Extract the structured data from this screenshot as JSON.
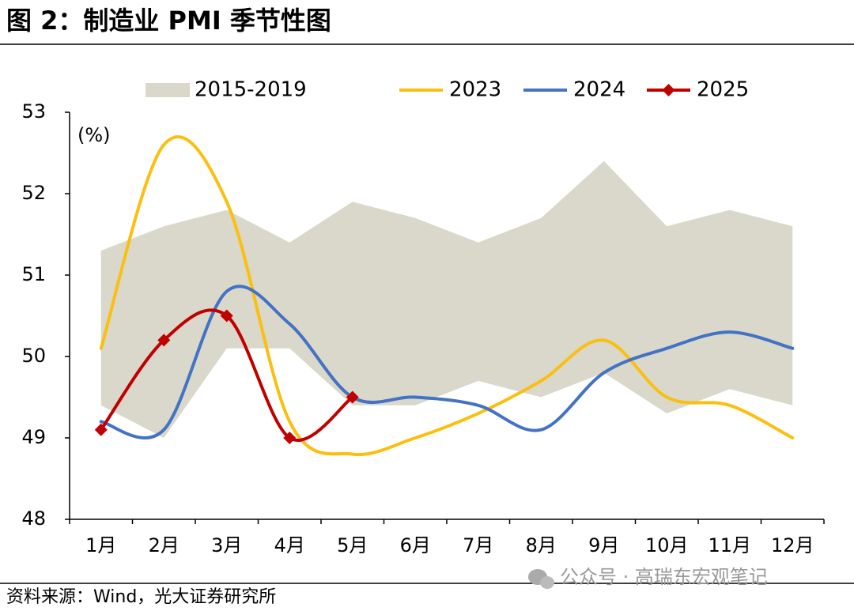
{
  "title": "图 2：制造业 PMI 季节性图",
  "source": "资料来源：Wind，光大证券研究所",
  "watermark": "公众号 · 高瑞东宏观笔记",
  "chart_data": {
    "type": "line",
    "y_label": "(%)",
    "categories": [
      "1月",
      "2月",
      "3月",
      "4月",
      "5月",
      "6月",
      "7月",
      "8月",
      "9月",
      "10月",
      "11月",
      "12月"
    ],
    "ylim": [
      48,
      53
    ],
    "yticks": [
      48,
      49,
      50,
      51,
      52,
      53
    ],
    "smooth": true,
    "band": {
      "name": "2015-2019",
      "color": "#d9d8cb",
      "upper": [
        51.3,
        51.6,
        51.8,
        51.4,
        51.9,
        51.7,
        51.4,
        51.7,
        52.4,
        51.6,
        51.8,
        51.6
      ],
      "lower": [
        49.4,
        49.0,
        50.1,
        50.1,
        49.4,
        49.4,
        49.7,
        49.5,
        49.8,
        49.3,
        49.6,
        49.4
      ]
    },
    "series": [
      {
        "name": "2023",
        "color": "#fbbf0f",
        "values": [
          50.1,
          52.6,
          51.9,
          49.2,
          48.8,
          49.0,
          49.3,
          49.7,
          50.2,
          49.5,
          49.4,
          49.0
        ]
      },
      {
        "name": "2024",
        "color": "#4472c4",
        "values": [
          49.2,
          49.1,
          50.8,
          50.4,
          49.5,
          49.5,
          49.4,
          49.1,
          49.8,
          50.1,
          50.3,
          50.1
        ]
      },
      {
        "name": "2025",
        "color": "#c00000",
        "marker": "diamond",
        "values": [
          49.1,
          50.2,
          50.5,
          49.0,
          49.5,
          null,
          null,
          null,
          null,
          null,
          null,
          null
        ]
      }
    ]
  }
}
